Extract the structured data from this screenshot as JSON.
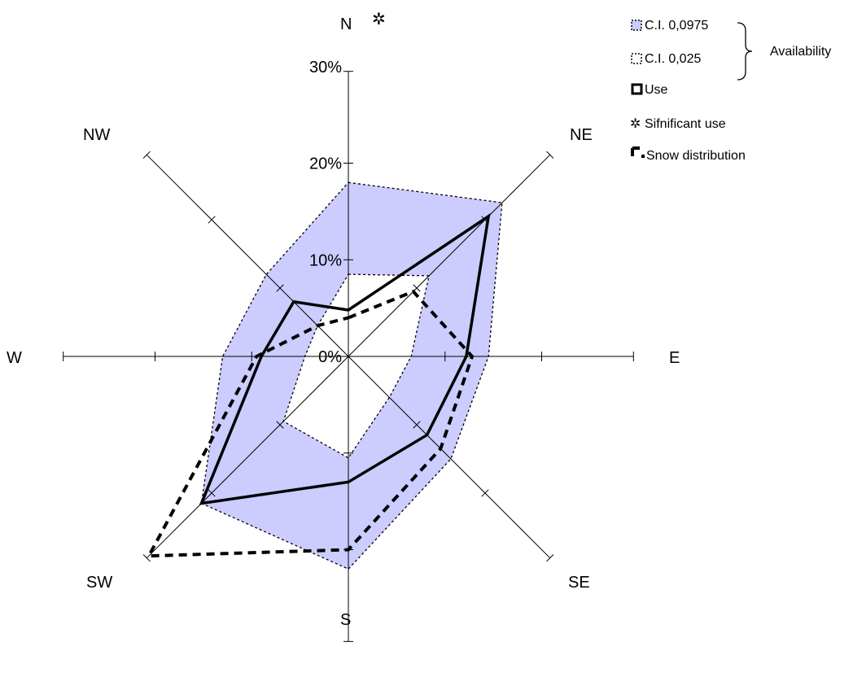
{
  "chart_data": {
    "type": "radar",
    "directions": [
      "N",
      "NE",
      "E",
      "SE",
      "S",
      "SW",
      "W",
      "NW"
    ],
    "r_ticks": [
      "0%",
      "10%",
      "20%",
      "30%"
    ],
    "r_max": 0.32,
    "series": [
      {
        "name": "C.I. 0,0975",
        "values": [
          0.18,
          0.225,
          0.145,
          0.15,
          0.22,
          0.215,
          0.13,
          0.12
        ],
        "style": "band-outer",
        "color": "#ccccff"
      },
      {
        "name": "C.I. 0,025",
        "values": [
          0.085,
          0.118,
          0.065,
          0.06,
          0.105,
          0.095,
          0.045,
          0.045
        ],
        "style": "band-inner",
        "color": "#ffffff"
      },
      {
        "name": "Use",
        "values": [
          0.048,
          0.205,
          0.122,
          0.115,
          0.13,
          0.215,
          0.09,
          0.08
        ],
        "style": "solid",
        "color": "#000000"
      },
      {
        "name": "Snow distribution",
        "values": [
          0.04,
          0.095,
          0.128,
          0.135,
          0.2,
          0.292,
          0.095,
          0.045
        ],
        "style": "dashed",
        "color": "#000000"
      }
    ],
    "significant_use": [
      "N"
    ],
    "legend": {
      "items": [
        "C.I. 0,0975",
        "C.I. 0,025",
        "Use",
        "Sifnificant use",
        "Snow distribution"
      ],
      "group_label": "Availability",
      "placement": "top-right"
    }
  }
}
